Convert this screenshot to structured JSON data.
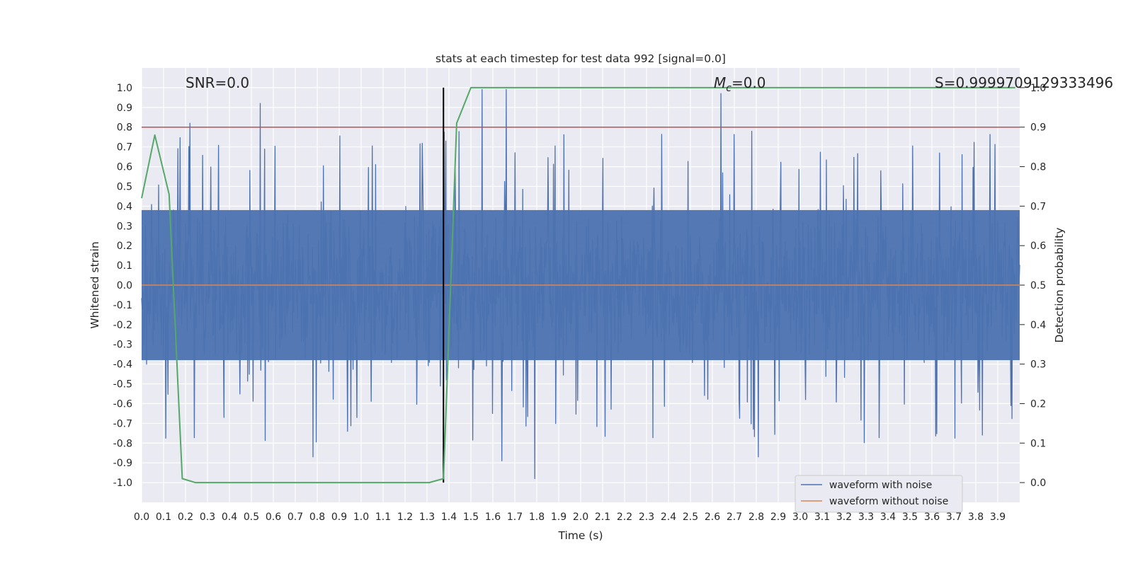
{
  "chart_data": {
    "type": "line",
    "title": "stats at each timestep for test data 992 [signal=0.0]",
    "xlabel": "Time (s)",
    "ylabel": "Whitened strain",
    "y2label": "Detection probability",
    "xlim": [
      0.0,
      4.0
    ],
    "ylim": [
      -1.1,
      1.1
    ],
    "y2lim": [
      -0.05,
      1.05
    ],
    "xticks": [
      "0.0",
      "0.1",
      "0.2",
      "0.3",
      "0.4",
      "0.5",
      "0.6",
      "0.7",
      "0.8",
      "0.9",
      "1.0",
      "1.1",
      "1.2",
      "1.3",
      "1.4",
      "1.5",
      "1.6",
      "1.7",
      "1.8",
      "1.9",
      "2.0",
      "2.1",
      "2.2",
      "2.3",
      "2.4",
      "2.5",
      "2.6",
      "2.7",
      "2.8",
      "2.9",
      "3.0",
      "3.1",
      "3.2",
      "3.3",
      "3.4",
      "3.5",
      "3.6",
      "3.7",
      "3.8",
      "3.9"
    ],
    "yticks": [
      "1.0",
      "0.9",
      "0.8",
      "0.7",
      "0.6",
      "0.5",
      "0.4",
      "0.3",
      "0.2",
      "0.1",
      "0.0",
      "-0.1",
      "-0.2",
      "-0.3",
      "-0.4",
      "-0.5",
      "-0.6",
      "-0.7",
      "-0.8",
      "-0.9",
      "-1.0"
    ],
    "y2ticks": [
      "1.0",
      "0.9",
      "0.8",
      "0.7",
      "0.6",
      "0.5",
      "0.4",
      "0.3",
      "0.2",
      "0.1",
      "0.0"
    ],
    "grid": true,
    "legend_position": "lower-right",
    "annotations": {
      "snr": "SNR=0.0",
      "mc_symbol": "M",
      "mc_sub": "c",
      "mc_value": "=0.0",
      "score": "S=0.9999709129333496"
    },
    "series": [
      {
        "name": "waveform with noise",
        "color": "#4c72b0",
        "note": "dense noise trace, amplitude roughly within -0.98 to 0.97",
        "peaks": [
          {
            "x": 0.54,
            "y": 0.92
          },
          {
            "x": 0.22,
            "y": 0.82
          },
          {
            "x": 2.64,
            "y": 0.97
          },
          {
            "x": 1.55,
            "y": 0.99
          },
          {
            "x": 1.66,
            "y": 0.99
          },
          {
            "x": 1.79,
            "y": -0.98
          },
          {
            "x": 0.78,
            "y": -0.87
          },
          {
            "x": 2.81,
            "y": -0.87
          },
          {
            "x": 1.64,
            "y": -0.89
          }
        ]
      },
      {
        "name": "waveform without noise",
        "color": "#dd8452",
        "x": [
          0.0,
          4.0
        ],
        "y": [
          0.0,
          0.0
        ]
      },
      {
        "name": "detection probability",
        "color": "#55a868",
        "axis": "right",
        "x": [
          0.0,
          0.06,
          0.125,
          0.185,
          0.245,
          1.31,
          1.375,
          1.435,
          1.5,
          3.98
        ],
        "y": [
          0.72,
          0.88,
          0.73,
          0.01,
          0.0,
          0.0,
          0.01,
          0.91,
          1.0,
          1.0
        ]
      }
    ],
    "threshold_line": {
      "axis": "right",
      "y": 0.9,
      "color": "#c44e52"
    },
    "marker_line": {
      "x": 1.375,
      "color": "#000000"
    }
  }
}
